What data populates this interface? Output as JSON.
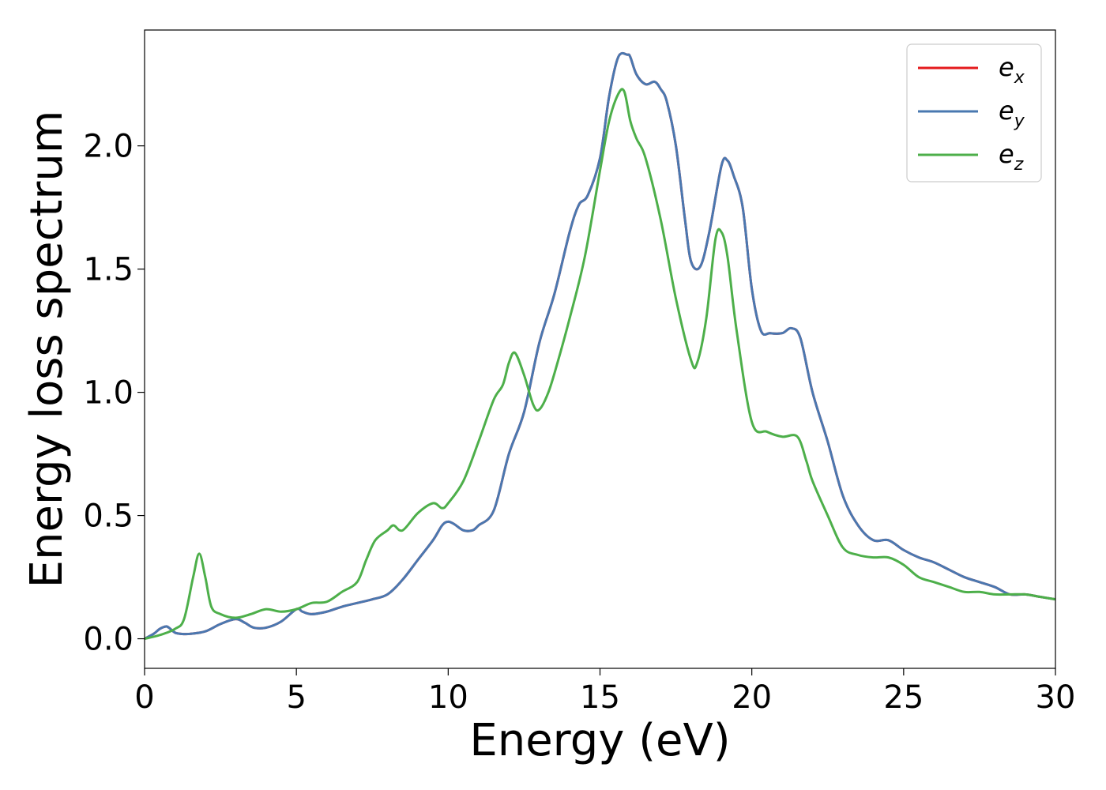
{
  "chart_data": {
    "type": "line",
    "title": "",
    "xlabel": "Energy (eV)",
    "ylabel": "Energy loss spectrum",
    "xlim": [
      0,
      30
    ],
    "ylim": [
      -0.12,
      2.47
    ],
    "xticks": [
      0,
      5,
      10,
      15,
      20,
      25,
      30
    ],
    "yticks": [
      0.0,
      0.5,
      1.0,
      1.5,
      2.0
    ],
    "xtick_labels": [
      "0",
      "5",
      "10",
      "15",
      "20",
      "25",
      "30"
    ],
    "ytick_labels": [
      "0.0",
      "0.5",
      "1.0",
      "1.5",
      "2.0"
    ],
    "grid": false,
    "legend_position": "top-right",
    "series": [
      {
        "name": "e_x",
        "label_main": "e",
        "label_sub": "x",
        "color": "#e41a1c",
        "x": [
          0,
          0.3,
          0.5,
          0.7,
          0.8,
          1.0,
          1.2,
          1.5,
          2.0,
          2.5,
          3.0,
          3.3,
          3.6,
          4.0,
          4.5,
          5.0,
          5.2,
          5.5,
          6.0,
          6.5,
          7.0,
          7.5,
          8.0,
          8.5,
          9.0,
          9.5,
          9.8,
          10.0,
          10.2,
          10.5,
          10.8,
          11.0,
          11.5,
          12.0,
          12.5,
          13.0,
          13.5,
          14.0,
          14.3,
          14.6,
          15.0,
          15.3,
          15.6,
          15.9,
          16.0,
          16.2,
          16.5,
          16.8,
          17.0,
          17.2,
          17.5,
          17.8,
          18.0,
          18.3,
          18.6,
          19.0,
          19.2,
          19.4,
          19.7,
          20.0,
          20.3,
          20.6,
          21.0,
          21.3,
          21.6,
          22.0,
          22.5,
          23.0,
          23.5,
          24.0,
          24.5,
          25.0,
          25.5,
          26.0,
          26.5,
          27.0,
          27.5,
          28.0,
          28.5,
          29.0,
          29.5,
          30.0
        ],
        "values": [
          0.0,
          0.02,
          0.04,
          0.05,
          0.045,
          0.025,
          0.02,
          0.02,
          0.03,
          0.06,
          0.08,
          0.065,
          0.045,
          0.045,
          0.07,
          0.12,
          0.11,
          0.1,
          0.11,
          0.13,
          0.145,
          0.16,
          0.18,
          0.24,
          0.32,
          0.4,
          0.46,
          0.475,
          0.465,
          0.44,
          0.44,
          0.46,
          0.52,
          0.75,
          0.92,
          1.2,
          1.4,
          1.65,
          1.76,
          1.8,
          1.95,
          2.2,
          2.36,
          2.37,
          2.36,
          2.29,
          2.25,
          2.26,
          2.23,
          2.18,
          2.0,
          1.7,
          1.53,
          1.51,
          1.65,
          1.92,
          1.94,
          1.88,
          1.75,
          1.42,
          1.25,
          1.24,
          1.24,
          1.26,
          1.22,
          1.0,
          0.8,
          0.58,
          0.46,
          0.4,
          0.4,
          0.36,
          0.33,
          0.31,
          0.28,
          0.25,
          0.23,
          0.21,
          0.18,
          0.18,
          0.17,
          0.16
        ]
      },
      {
        "name": "e_y",
        "label_main": "e",
        "label_sub": "y",
        "color": "#4a78b0",
        "x": [
          0,
          0.3,
          0.5,
          0.7,
          0.8,
          1.0,
          1.2,
          1.5,
          2.0,
          2.5,
          3.0,
          3.3,
          3.6,
          4.0,
          4.5,
          5.0,
          5.2,
          5.5,
          6.0,
          6.5,
          7.0,
          7.5,
          8.0,
          8.5,
          9.0,
          9.5,
          9.8,
          10.0,
          10.2,
          10.5,
          10.8,
          11.0,
          11.5,
          12.0,
          12.5,
          13.0,
          13.5,
          14.0,
          14.3,
          14.6,
          15.0,
          15.3,
          15.6,
          15.9,
          16.0,
          16.2,
          16.5,
          16.8,
          17.0,
          17.2,
          17.5,
          17.8,
          18.0,
          18.3,
          18.6,
          19.0,
          19.2,
          19.4,
          19.7,
          20.0,
          20.3,
          20.6,
          21.0,
          21.3,
          21.6,
          22.0,
          22.5,
          23.0,
          23.5,
          24.0,
          24.5,
          25.0,
          25.5,
          26.0,
          26.5,
          27.0,
          27.5,
          28.0,
          28.5,
          29.0,
          29.5,
          30.0
        ],
        "values": [
          0.0,
          0.02,
          0.04,
          0.05,
          0.045,
          0.025,
          0.02,
          0.02,
          0.03,
          0.06,
          0.08,
          0.065,
          0.045,
          0.045,
          0.07,
          0.12,
          0.11,
          0.1,
          0.11,
          0.13,
          0.145,
          0.16,
          0.18,
          0.24,
          0.32,
          0.4,
          0.46,
          0.475,
          0.465,
          0.44,
          0.44,
          0.46,
          0.52,
          0.75,
          0.92,
          1.2,
          1.4,
          1.65,
          1.76,
          1.8,
          1.95,
          2.2,
          2.36,
          2.37,
          2.36,
          2.29,
          2.25,
          2.26,
          2.23,
          2.18,
          2.0,
          1.7,
          1.53,
          1.51,
          1.65,
          1.92,
          1.94,
          1.88,
          1.75,
          1.42,
          1.25,
          1.24,
          1.24,
          1.26,
          1.22,
          1.0,
          0.8,
          0.58,
          0.46,
          0.4,
          0.4,
          0.36,
          0.33,
          0.31,
          0.28,
          0.25,
          0.23,
          0.21,
          0.18,
          0.18,
          0.17,
          0.16
        ]
      },
      {
        "name": "e_z",
        "label_main": "e",
        "label_sub": "z",
        "color": "#4daf4a",
        "x": [
          0,
          0.5,
          1.0,
          1.3,
          1.6,
          1.8,
          2.0,
          2.2,
          2.5,
          3.0,
          3.5,
          4.0,
          4.5,
          5.0,
          5.5,
          6.0,
          6.5,
          7.0,
          7.3,
          7.6,
          8.0,
          8.2,
          8.5,
          9.0,
          9.5,
          9.8,
          10.0,
          10.5,
          11.0,
          11.5,
          11.8,
          12.0,
          12.2,
          12.5,
          12.8,
          13.0,
          13.3,
          13.6,
          14.0,
          14.5,
          15.0,
          15.3,
          15.6,
          15.8,
          16.0,
          16.2,
          16.5,
          17.0,
          17.5,
          18.0,
          18.2,
          18.5,
          18.8,
          19.0,
          19.2,
          19.5,
          20.0,
          20.5,
          21.0,
          21.5,
          21.8,
          22.0,
          22.5,
          23.0,
          23.5,
          24.0,
          24.5,
          25.0,
          25.5,
          26.0,
          26.5,
          27.0,
          27.5,
          28.0,
          28.5,
          29.0,
          29.5,
          30.0
        ],
        "values": [
          0.0,
          0.015,
          0.04,
          0.08,
          0.25,
          0.345,
          0.25,
          0.13,
          0.1,
          0.085,
          0.1,
          0.12,
          0.11,
          0.12,
          0.145,
          0.15,
          0.19,
          0.23,
          0.32,
          0.4,
          0.44,
          0.46,
          0.44,
          0.51,
          0.55,
          0.53,
          0.55,
          0.64,
          0.8,
          0.97,
          1.03,
          1.12,
          1.16,
          1.07,
          0.95,
          0.93,
          1.0,
          1.12,
          1.3,
          1.55,
          1.9,
          2.1,
          2.21,
          2.22,
          2.1,
          2.03,
          1.95,
          1.7,
          1.38,
          1.13,
          1.12,
          1.3,
          1.62,
          1.65,
          1.55,
          1.25,
          0.88,
          0.84,
          0.82,
          0.82,
          0.72,
          0.64,
          0.5,
          0.37,
          0.34,
          0.33,
          0.33,
          0.3,
          0.25,
          0.23,
          0.21,
          0.19,
          0.19,
          0.18,
          0.18,
          0.18,
          0.17,
          0.16
        ]
      }
    ]
  }
}
